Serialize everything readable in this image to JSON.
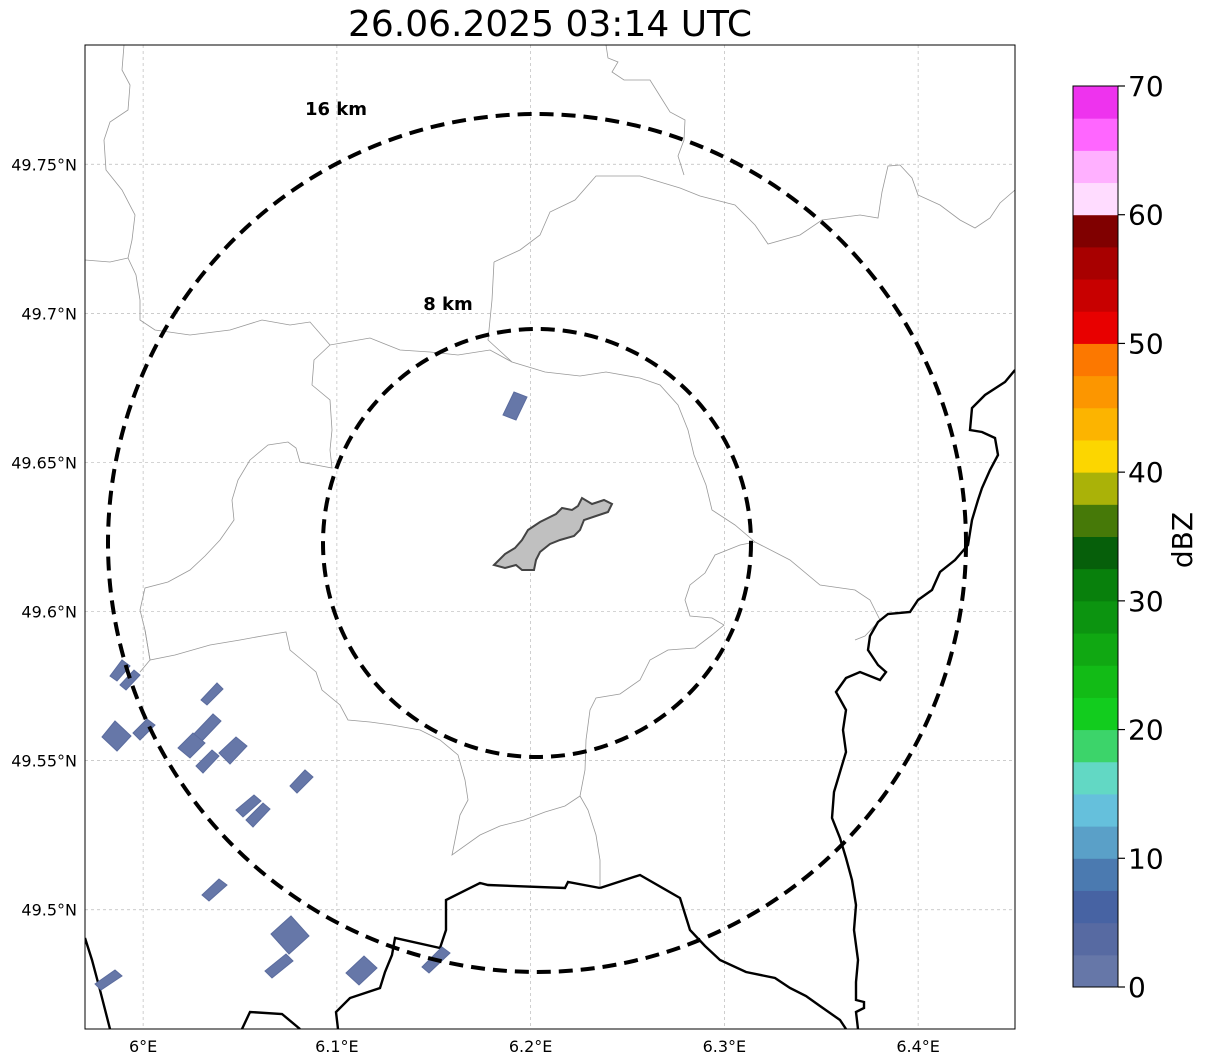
{
  "title": "26.06.2025 03:14 UTC",
  "map": {
    "lon_range": [
      5.97,
      6.45
    ],
    "lat_range": [
      49.46,
      49.79
    ],
    "lon_ticks": [
      {
        "value": 6.0,
        "label": "6°E"
      },
      {
        "value": 6.1,
        "label": "6.1°E"
      },
      {
        "value": 6.2,
        "label": "6.2°E"
      },
      {
        "value": 6.3,
        "label": "6.3°E"
      },
      {
        "value": 6.4,
        "label": "6.4°E"
      }
    ],
    "lat_ticks": [
      {
        "value": 49.75,
        "label": "49.75°N"
      },
      {
        "value": 49.7,
        "label": "49.7°N"
      },
      {
        "value": 49.65,
        "label": "49.65°N"
      },
      {
        "value": 49.6,
        "label": "49.6°N"
      },
      {
        "value": 49.55,
        "label": "49.55°N"
      },
      {
        "value": 49.5,
        "label": "49.5°N"
      }
    ],
    "center": {
      "lon": 6.203,
      "lat": 49.623
    },
    "rings": [
      {
        "label": "8 km",
        "radius_km": 8
      },
      {
        "label": "16 km",
        "radius_km": 16
      }
    ],
    "gridlines": true,
    "echo_color": "#6677a8",
    "city_color": "#c0c0c0"
  },
  "colorbar": {
    "label": "dBZ",
    "min": 0,
    "max": 70,
    "step": 2.5,
    "ticks": [
      0,
      10,
      20,
      30,
      40,
      50,
      60,
      70
    ],
    "colors": [
      "#6677a8",
      "#576aa2",
      "#4763a3",
      "#4b7ab0",
      "#5aa0c8",
      "#65c0dc",
      "#62d8c4",
      "#3cd46a",
      "#12cc1e",
      "#12bb16",
      "#10a812",
      "#0c9410",
      "#08800c",
      "#065f0a",
      "#467908",
      "#aab208",
      "#fcd600",
      "#fcb400",
      "#fc9600",
      "#fc7800",
      "#e80000",
      "#c80000",
      "#a80000",
      "#800000",
      "#ffdcff",
      "#ffb0ff",
      "#ff66ff",
      "#ee33ee"
    ]
  }
}
